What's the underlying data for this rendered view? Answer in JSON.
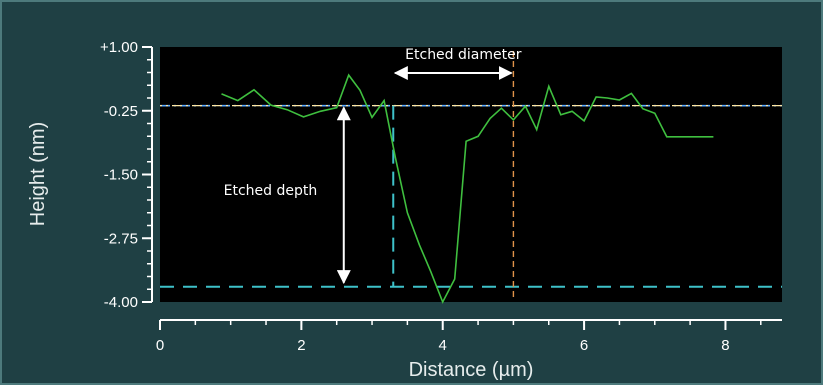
{
  "chart_data": {
    "type": "line",
    "xlabel": "Distance (µm)",
    "ylabel": "Height (nm)",
    "xlim": [
      0,
      8.8
    ],
    "ylim": [
      -4.0,
      1.0
    ],
    "x_ticks": [
      0,
      2,
      4,
      6,
      8
    ],
    "y_ticks": [
      1.0,
      -0.25,
      -1.5,
      -2.75,
      -4.0
    ],
    "x_tick_labels": [
      "0",
      "2",
      "4",
      "6",
      "8"
    ],
    "y_tick_labels": [
      "+1.00",
      "-0.25",
      "-1.50",
      "-2.75",
      "-4.00"
    ],
    "grid": false,
    "background": "#000000",
    "series": [
      {
        "color": "#3fbf3f",
        "x": [
          0.87,
          1.1,
          1.33,
          1.57,
          1.8,
          2.03,
          2.27,
          2.5,
          2.67,
          2.83,
          3.0,
          3.17,
          3.33,
          3.5,
          3.67,
          3.83,
          4.0,
          4.17,
          4.33,
          4.5,
          4.67,
          4.83,
          5.0,
          5.17,
          5.33,
          5.5,
          5.67,
          5.83,
          6.0,
          6.17,
          6.33,
          6.5,
          6.67,
          6.83,
          7.0,
          7.17,
          7.33,
          7.5,
          7.67,
          7.83
        ],
        "y": [
          0.08,
          -0.05,
          0.16,
          -0.14,
          -0.23,
          -0.37,
          -0.26,
          -0.19,
          0.45,
          0.15,
          -0.38,
          -0.05,
          -1.17,
          -2.25,
          -2.88,
          -3.4,
          -4.0,
          -3.55,
          -0.85,
          -0.75,
          -0.4,
          -0.2,
          -0.43,
          -0.16,
          -0.62,
          0.23,
          -0.33,
          -0.26,
          -0.45,
          0.02,
          0.0,
          -0.04,
          0.09,
          -0.21,
          -0.3,
          -0.76,
          -0.76,
          -0.76,
          -0.76,
          -0.76
        ]
      }
    ],
    "reference_lines": [
      {
        "orientation": "horizontal",
        "y": -0.15,
        "style": "dash-dot",
        "colors": [
          "#5aa9ff",
          "#ffe7a3"
        ]
      },
      {
        "orientation": "horizontal",
        "y": -3.7,
        "style": "dashed",
        "color": "#3ec1c9"
      },
      {
        "orientation": "vertical",
        "x": 3.3,
        "style": "dashed",
        "color": "#3ec1c9"
      },
      {
        "orientation": "vertical",
        "x": 5.0,
        "style": "dashed",
        "color": "#e0934a"
      }
    ],
    "annotations": [
      {
        "text": "Etched diameter",
        "arrow": "double",
        "from_x": 3.3,
        "to_x": 5.0,
        "color": "#ffffff"
      },
      {
        "text": "Etched depth",
        "arrow": "double",
        "from_y": -0.15,
        "to_y": -3.7,
        "color": "#ffffff"
      }
    ]
  }
}
